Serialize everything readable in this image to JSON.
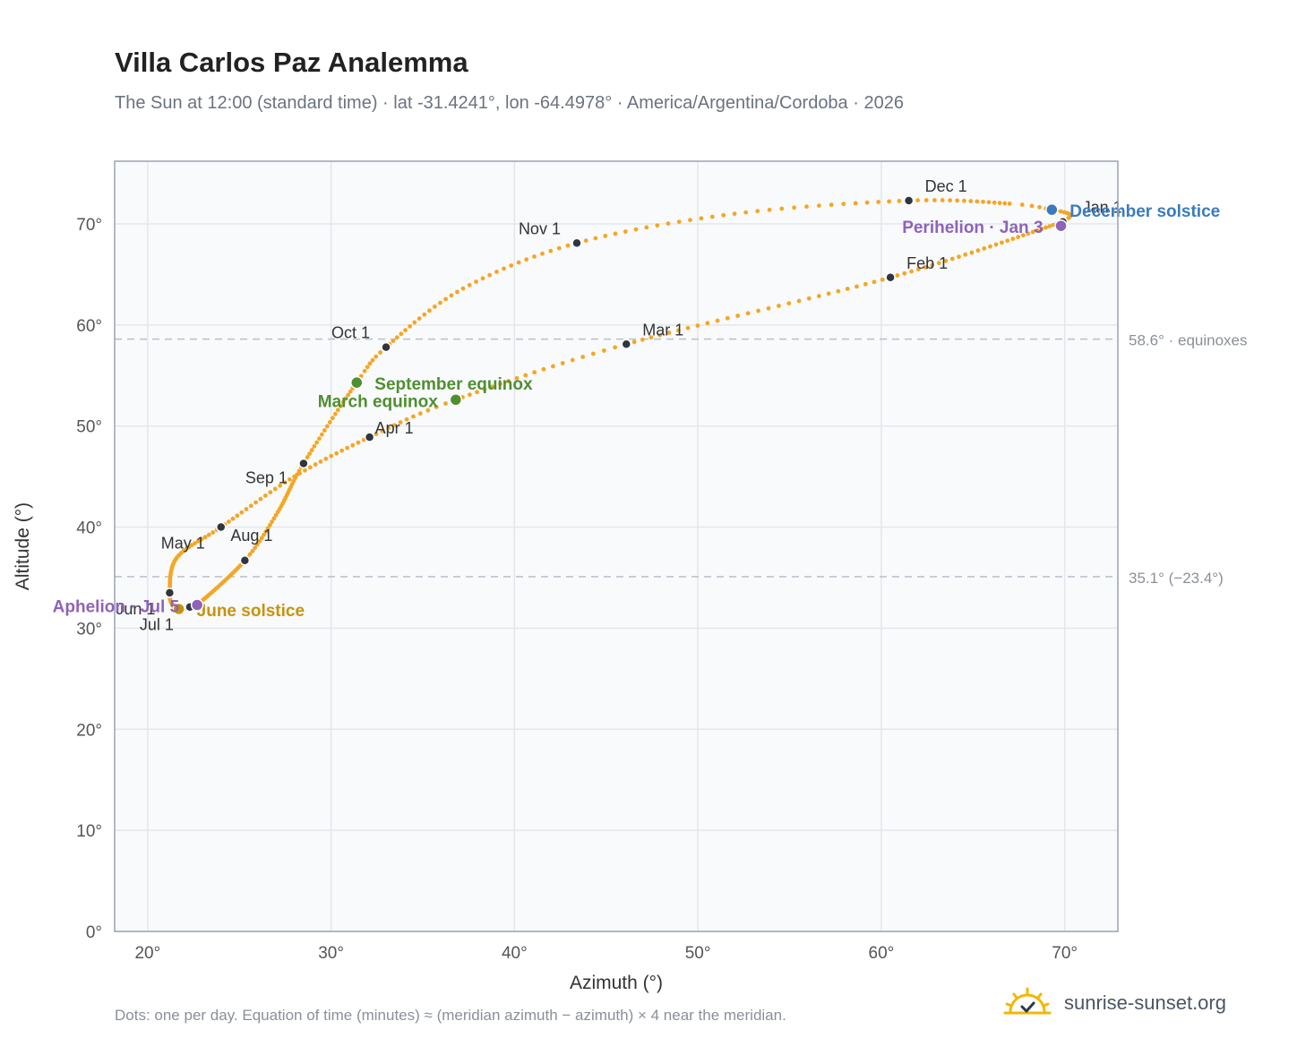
{
  "chart_data": {
    "type": "scatter",
    "title": "Villa Carlos Paz Analemma",
    "subtitle": "The Sun at 12:00 (standard time) · lat -31.4241°, lon -64.4978° · America/Argentina/Cordoba · 2026",
    "xlabel": "Azimuth (°)",
    "ylabel": "Altitude (°)",
    "xlim": [
      18.2,
      72.9
    ],
    "ylim": [
      0,
      76.2
    ],
    "xticks": [
      20,
      30,
      40,
      50,
      60,
      70
    ],
    "yticks": [
      0,
      10,
      20,
      30,
      40,
      50,
      60,
      70
    ],
    "xtick_labels": [
      "20°",
      "30°",
      "40°",
      "50°",
      "60°",
      "70°"
    ],
    "ytick_labels": [
      "0°",
      "10°",
      "20°",
      "30°",
      "40°",
      "50°",
      "60°",
      "70°"
    ],
    "grid": true,
    "series_color": "#f5a623",
    "path_knots": [
      {
        "doy": 1,
        "az": 69.9,
        "alt": 70.2
      },
      {
        "doy": 32,
        "az": 60.5,
        "alt": 64.7
      },
      {
        "doy": 60,
        "az": 46.1,
        "alt": 58.1
      },
      {
        "doy": 79,
        "az": 36.8,
        "alt": 52.6
      },
      {
        "doy": 91,
        "az": 32.1,
        "alt": 48.9
      },
      {
        "doy": 105,
        "az": 28.0,
        "alt": 45.0
      },
      {
        "doy": 121,
        "az": 24.0,
        "alt": 40.0
      },
      {
        "doy": 135,
        "az": 21.6,
        "alt": 37.0
      },
      {
        "doy": 152,
        "az": 21.2,
        "alt": 33.5
      },
      {
        "doy": 165,
        "az": 21.4,
        "alt": 32.2
      },
      {
        "doy": 172,
        "az": 21.7,
        "alt": 31.9
      },
      {
        "doy": 182,
        "az": 22.3,
        "alt": 32.1
      },
      {
        "doy": 186,
        "az": 22.7,
        "alt": 32.3
      },
      {
        "doy": 213,
        "az": 25.3,
        "alt": 36.7
      },
      {
        "doy": 228,
        "az": 27.1,
        "alt": 41.5
      },
      {
        "doy": 244,
        "az": 28.5,
        "alt": 46.3
      },
      {
        "doy": 266,
        "az": 31.4,
        "alt": 54.3
      },
      {
        "doy": 274,
        "az": 33.0,
        "alt": 57.8
      },
      {
        "doy": 290,
        "az": 37.2,
        "alt": 63.6
      },
      {
        "doy": 305,
        "az": 43.4,
        "alt": 68.1
      },
      {
        "doy": 320,
        "az": 52.0,
        "alt": 71.0
      },
      {
        "doy": 335,
        "az": 61.5,
        "alt": 72.3
      },
      {
        "doy": 350,
        "az": 67.0,
        "alt": 72.0
      },
      {
        "doy": 355,
        "az": 69.3,
        "alt": 71.4
      },
      {
        "doy": 361,
        "az": 70.3,
        "alt": 70.9
      },
      {
        "doy": 366,
        "az": 69.9,
        "alt": 70.2
      }
    ],
    "month_markers": [
      {
        "label": "Jan 1",
        "az": 69.9,
        "alt": 70.2
      },
      {
        "label": "Feb 1",
        "az": 60.5,
        "alt": 64.7
      },
      {
        "label": "Mar 1",
        "az": 46.1,
        "alt": 58.1
      },
      {
        "label": "Apr 1",
        "az": 32.1,
        "alt": 48.9
      },
      {
        "label": "May 1",
        "az": 24.0,
        "alt": 40.0
      },
      {
        "label": "Jun 1",
        "az": 21.2,
        "alt": 33.5
      },
      {
        "label": "Jul 1",
        "az": 22.3,
        "alt": 32.1
      },
      {
        "label": "Aug 1",
        "az": 25.3,
        "alt": 36.7
      },
      {
        "label": "Sep 1",
        "az": 28.5,
        "alt": 46.3
      },
      {
        "label": "Oct 1",
        "az": 33.0,
        "alt": 57.8
      },
      {
        "label": "Nov 1",
        "az": 43.4,
        "alt": 68.1
      },
      {
        "label": "Dec 1",
        "az": 61.5,
        "alt": 72.3
      }
    ],
    "events": [
      {
        "label": "December solstice",
        "az": 69.3,
        "alt": 71.4,
        "color": "#3a7bbf"
      },
      {
        "label": "Perihelion · Jan 3",
        "az": 69.8,
        "alt": 69.8,
        "color": "#8e63b8"
      },
      {
        "label": "September equinox",
        "az": 31.4,
        "alt": 54.3,
        "color": "#4f8f2f"
      },
      {
        "label": "March equinox",
        "az": 36.8,
        "alt": 52.6,
        "color": "#4f8f2f"
      },
      {
        "label": "June solstice",
        "az": 21.7,
        "alt": 31.9,
        "color": "#c8930a"
      },
      {
        "label": "Aphelion · Jul 5",
        "az": 22.7,
        "alt": 32.3,
        "color": "#8e63b8"
      }
    ],
    "reference_lines": [
      {
        "alt": 58.6,
        "label": "58.6° · equinoxes"
      },
      {
        "alt": 35.1,
        "label": "35.1° (−23.4°)"
      }
    ]
  },
  "footnote": "Dots: one per day. Equation of time (minutes) ≈ (meridian azimuth − azimuth) × 4 near the meridian.",
  "brand": {
    "text": "sunrise-sunset.org",
    "icon": "sun-check-icon"
  }
}
